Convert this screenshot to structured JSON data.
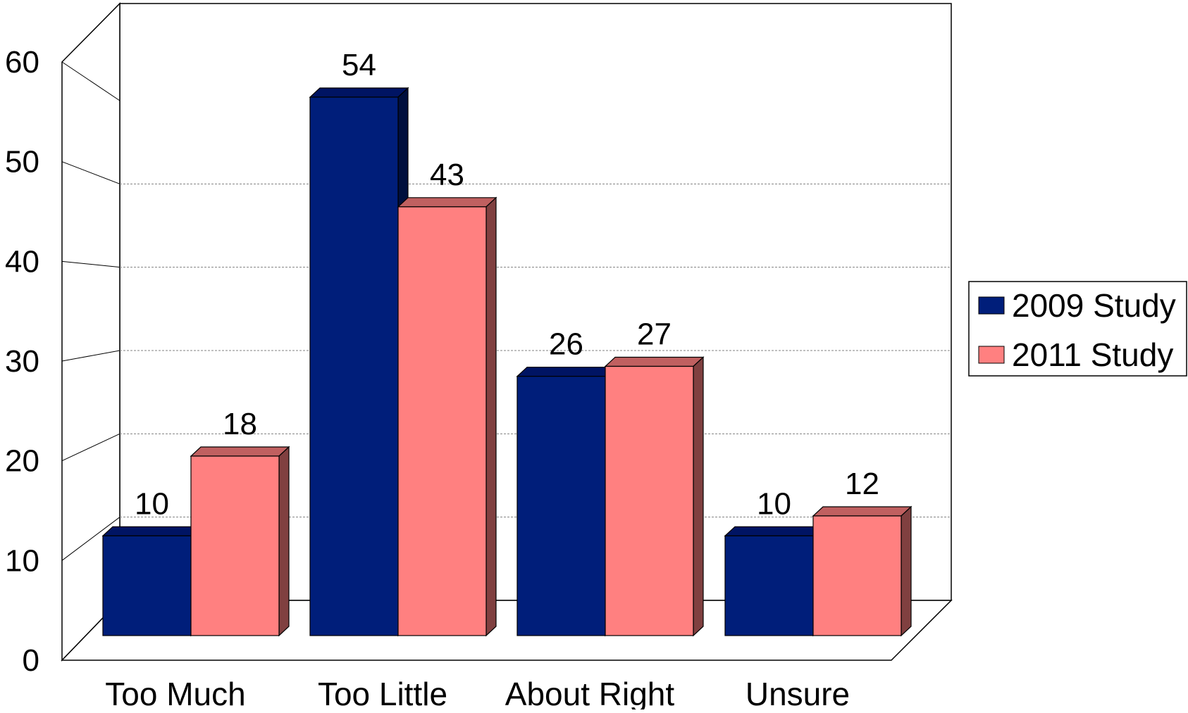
{
  "chart_data": {
    "type": "bar",
    "style": "3d-clustered-column",
    "categories": [
      "Too Much",
      "Too Little",
      "About Right",
      "Unsure"
    ],
    "series": [
      {
        "name": "2009 Study",
        "values": [
          10,
          54,
          26,
          10
        ],
        "color": "#001E7A",
        "side_color": "#000F3D",
        "top_color": "#001463"
      },
      {
        "name": "2011 Study",
        "values": [
          18,
          43,
          27,
          12
        ],
        "color": "#FF8080",
        "side_color": "#804040",
        "top_color": "#C06060"
      }
    ],
    "ylim": [
      0,
      60
    ],
    "yticks": [
      "0",
      "10",
      "20",
      "30",
      "40",
      "50",
      "60"
    ],
    "grid": true,
    "legend_position": "right"
  }
}
